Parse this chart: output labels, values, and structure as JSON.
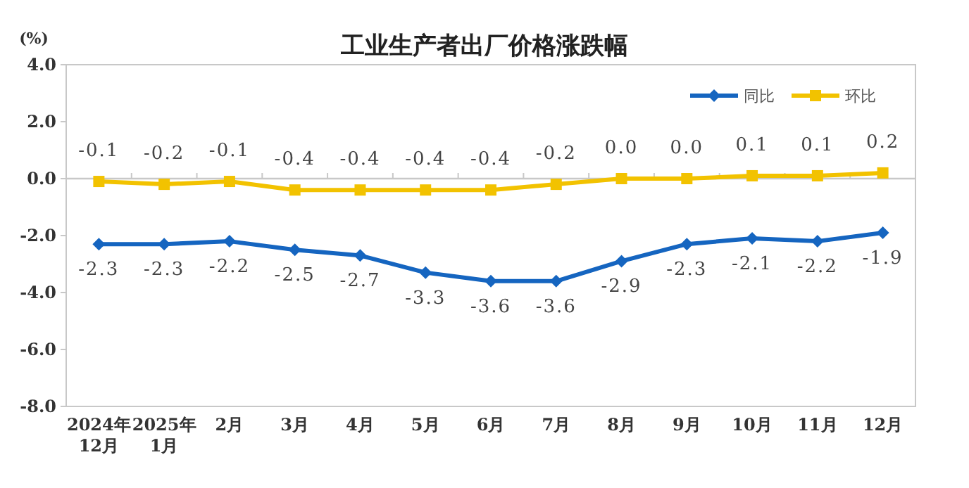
{
  "chart_data": {
    "type": "line",
    "title": "工业生产者出厂价格涨跌幅",
    "ylabel": "(%)",
    "categories": [
      "2024年12月",
      "2025年1月",
      "2月",
      "3月",
      "4月",
      "5月",
      "6月",
      "7月",
      "8月",
      "9月",
      "10月",
      "11月",
      "12月"
    ],
    "series": [
      {
        "name": "同比",
        "color": "#1565c0",
        "marker": "diamond",
        "values": [
          -2.3,
          -2.3,
          -2.2,
          -2.5,
          -2.7,
          -3.3,
          -3.6,
          -3.6,
          -2.9,
          -2.3,
          -2.1,
          -2.2,
          -1.9
        ],
        "value_labels": [
          "-2.3",
          "-2.3",
          "-2.2",
          "-2.5",
          "-2.7",
          "-3.3",
          "-3.6",
          "-3.6",
          "-2.9",
          "-2.3",
          "-2.1",
          "-2.2",
          "-1.9"
        ]
      },
      {
        "name": "环比",
        "color": "#f2c200",
        "marker": "square",
        "values": [
          -0.1,
          -0.2,
          -0.1,
          -0.4,
          -0.4,
          -0.4,
          -0.4,
          -0.2,
          0.0,
          0.0,
          0.1,
          0.1,
          0.2
        ],
        "value_labels": [
          "-0.1",
          "-0.2",
          "-0.1",
          "-0.4",
          "-0.4",
          "-0.4",
          "-0.4",
          "-0.2",
          "0.0",
          "0.0",
          "0.1",
          "0.1",
          "0.2"
        ]
      }
    ],
    "ylim": [
      -8,
      4
    ],
    "yticks": [
      {
        "value": -8,
        "label": "-8.0"
      },
      {
        "value": -6,
        "label": "-6.0"
      },
      {
        "value": -4,
        "label": "-4.0"
      },
      {
        "value": -2,
        "label": "-2.0"
      },
      {
        "value": 0,
        "label": "0.0"
      },
      {
        "value": 2,
        "label": "2.0"
      },
      {
        "value": 4,
        "label": "4.0"
      }
    ],
    "ref_lines": [
      {
        "axis": "y",
        "value": 0,
        "color": "#c8c8c8"
      }
    ],
    "legend": "top right",
    "line_style": "solid"
  }
}
